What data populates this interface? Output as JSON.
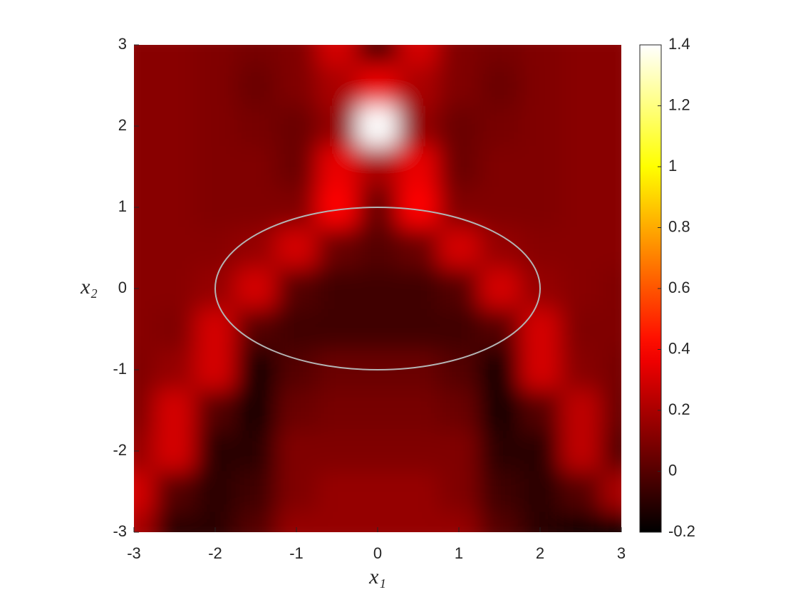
{
  "chart_data": {
    "type": "heatmap",
    "colormap": "hot",
    "xlabel": "x₁",
    "ylabel": "x₂",
    "x": [
      -3,
      -2.5,
      -2,
      -1.5,
      -1,
      -0.5,
      0,
      0.5,
      1,
      1.5,
      2,
      2.5,
      3
    ],
    "y": [
      3,
      2.5,
      2,
      1.5,
      1,
      0.5,
      0,
      -0.5,
      -1,
      -1.5,
      -2,
      -2.5,
      -3
    ],
    "z": [
      [
        0.12,
        0.12,
        0.1,
        0.08,
        0.1,
        0.3,
        0.0,
        0.3,
        0.1,
        0.08,
        0.1,
        0.12,
        0.12
      ],
      [
        0.12,
        0.12,
        0.1,
        0.05,
        0.1,
        0.2,
        0.35,
        0.2,
        0.1,
        0.05,
        0.1,
        0.12,
        0.12
      ],
      [
        0.12,
        0.12,
        0.1,
        0.08,
        0.05,
        0.15,
        1.4,
        0.15,
        0.05,
        0.08,
        0.1,
        0.12,
        0.12
      ],
      [
        0.12,
        0.12,
        0.1,
        0.1,
        0.05,
        0.35,
        0.2,
        0.35,
        0.05,
        0.1,
        0.1,
        0.12,
        0.12
      ],
      [
        0.12,
        0.12,
        0.1,
        0.1,
        0.1,
        0.4,
        0.05,
        0.4,
        0.1,
        0.1,
        0.1,
        0.12,
        0.12
      ],
      [
        0.12,
        0.12,
        0.12,
        0.15,
        0.3,
        0.05,
        0.0,
        0.05,
        0.3,
        0.15,
        0.12,
        0.12,
        0.12
      ],
      [
        0.12,
        0.12,
        0.15,
        0.3,
        0.0,
        -0.05,
        -0.05,
        -0.05,
        0.0,
        0.3,
        0.15,
        0.12,
        0.1
      ],
      [
        0.12,
        0.1,
        0.3,
        0.0,
        -0.05,
        -0.05,
        -0.05,
        -0.05,
        -0.05,
        0.0,
        0.3,
        0.1,
        0.1
      ],
      [
        0.1,
        0.15,
        0.3,
        -0.15,
        0.0,
        0.05,
        0.05,
        0.05,
        0.0,
        -0.15,
        0.3,
        0.12,
        0.08
      ],
      [
        0.1,
        0.3,
        0.0,
        -0.15,
        0.05,
        0.08,
        0.08,
        0.08,
        0.05,
        -0.15,
        0.0,
        0.25,
        0.05
      ],
      [
        0.15,
        0.3,
        -0.1,
        -0.1,
        0.1,
        0.1,
        0.1,
        0.1,
        0.1,
        -0.1,
        -0.1,
        0.25,
        0.0
      ],
      [
        0.3,
        0.0,
        -0.1,
        -0.05,
        0.1,
        0.15,
        0.15,
        0.15,
        0.1,
        -0.05,
        -0.1,
        0.0,
        0.2
      ],
      [
        0.2,
        -0.1,
        -0.1,
        0.0,
        0.15,
        0.15,
        0.15,
        0.15,
        0.15,
        0.0,
        -0.1,
        -0.15,
        -0.2
      ]
    ],
    "xlim": [
      -3,
      3
    ],
    "ylim": [
      -3,
      3
    ],
    "xticks": [
      -3,
      -2,
      -1,
      0,
      1,
      2,
      3
    ],
    "yticks": [
      -3,
      -2,
      -1,
      0,
      1,
      2,
      3
    ],
    "clim": [
      -0.2,
      1.4
    ],
    "cticks": [
      -0.2,
      0,
      0.2,
      0.4,
      0.6,
      0.8,
      1,
      1.2,
      1.4
    ],
    "ellipse": {
      "center": [
        0,
        0
      ],
      "radii": [
        2,
        1
      ],
      "color": "#b4b4b4"
    }
  }
}
